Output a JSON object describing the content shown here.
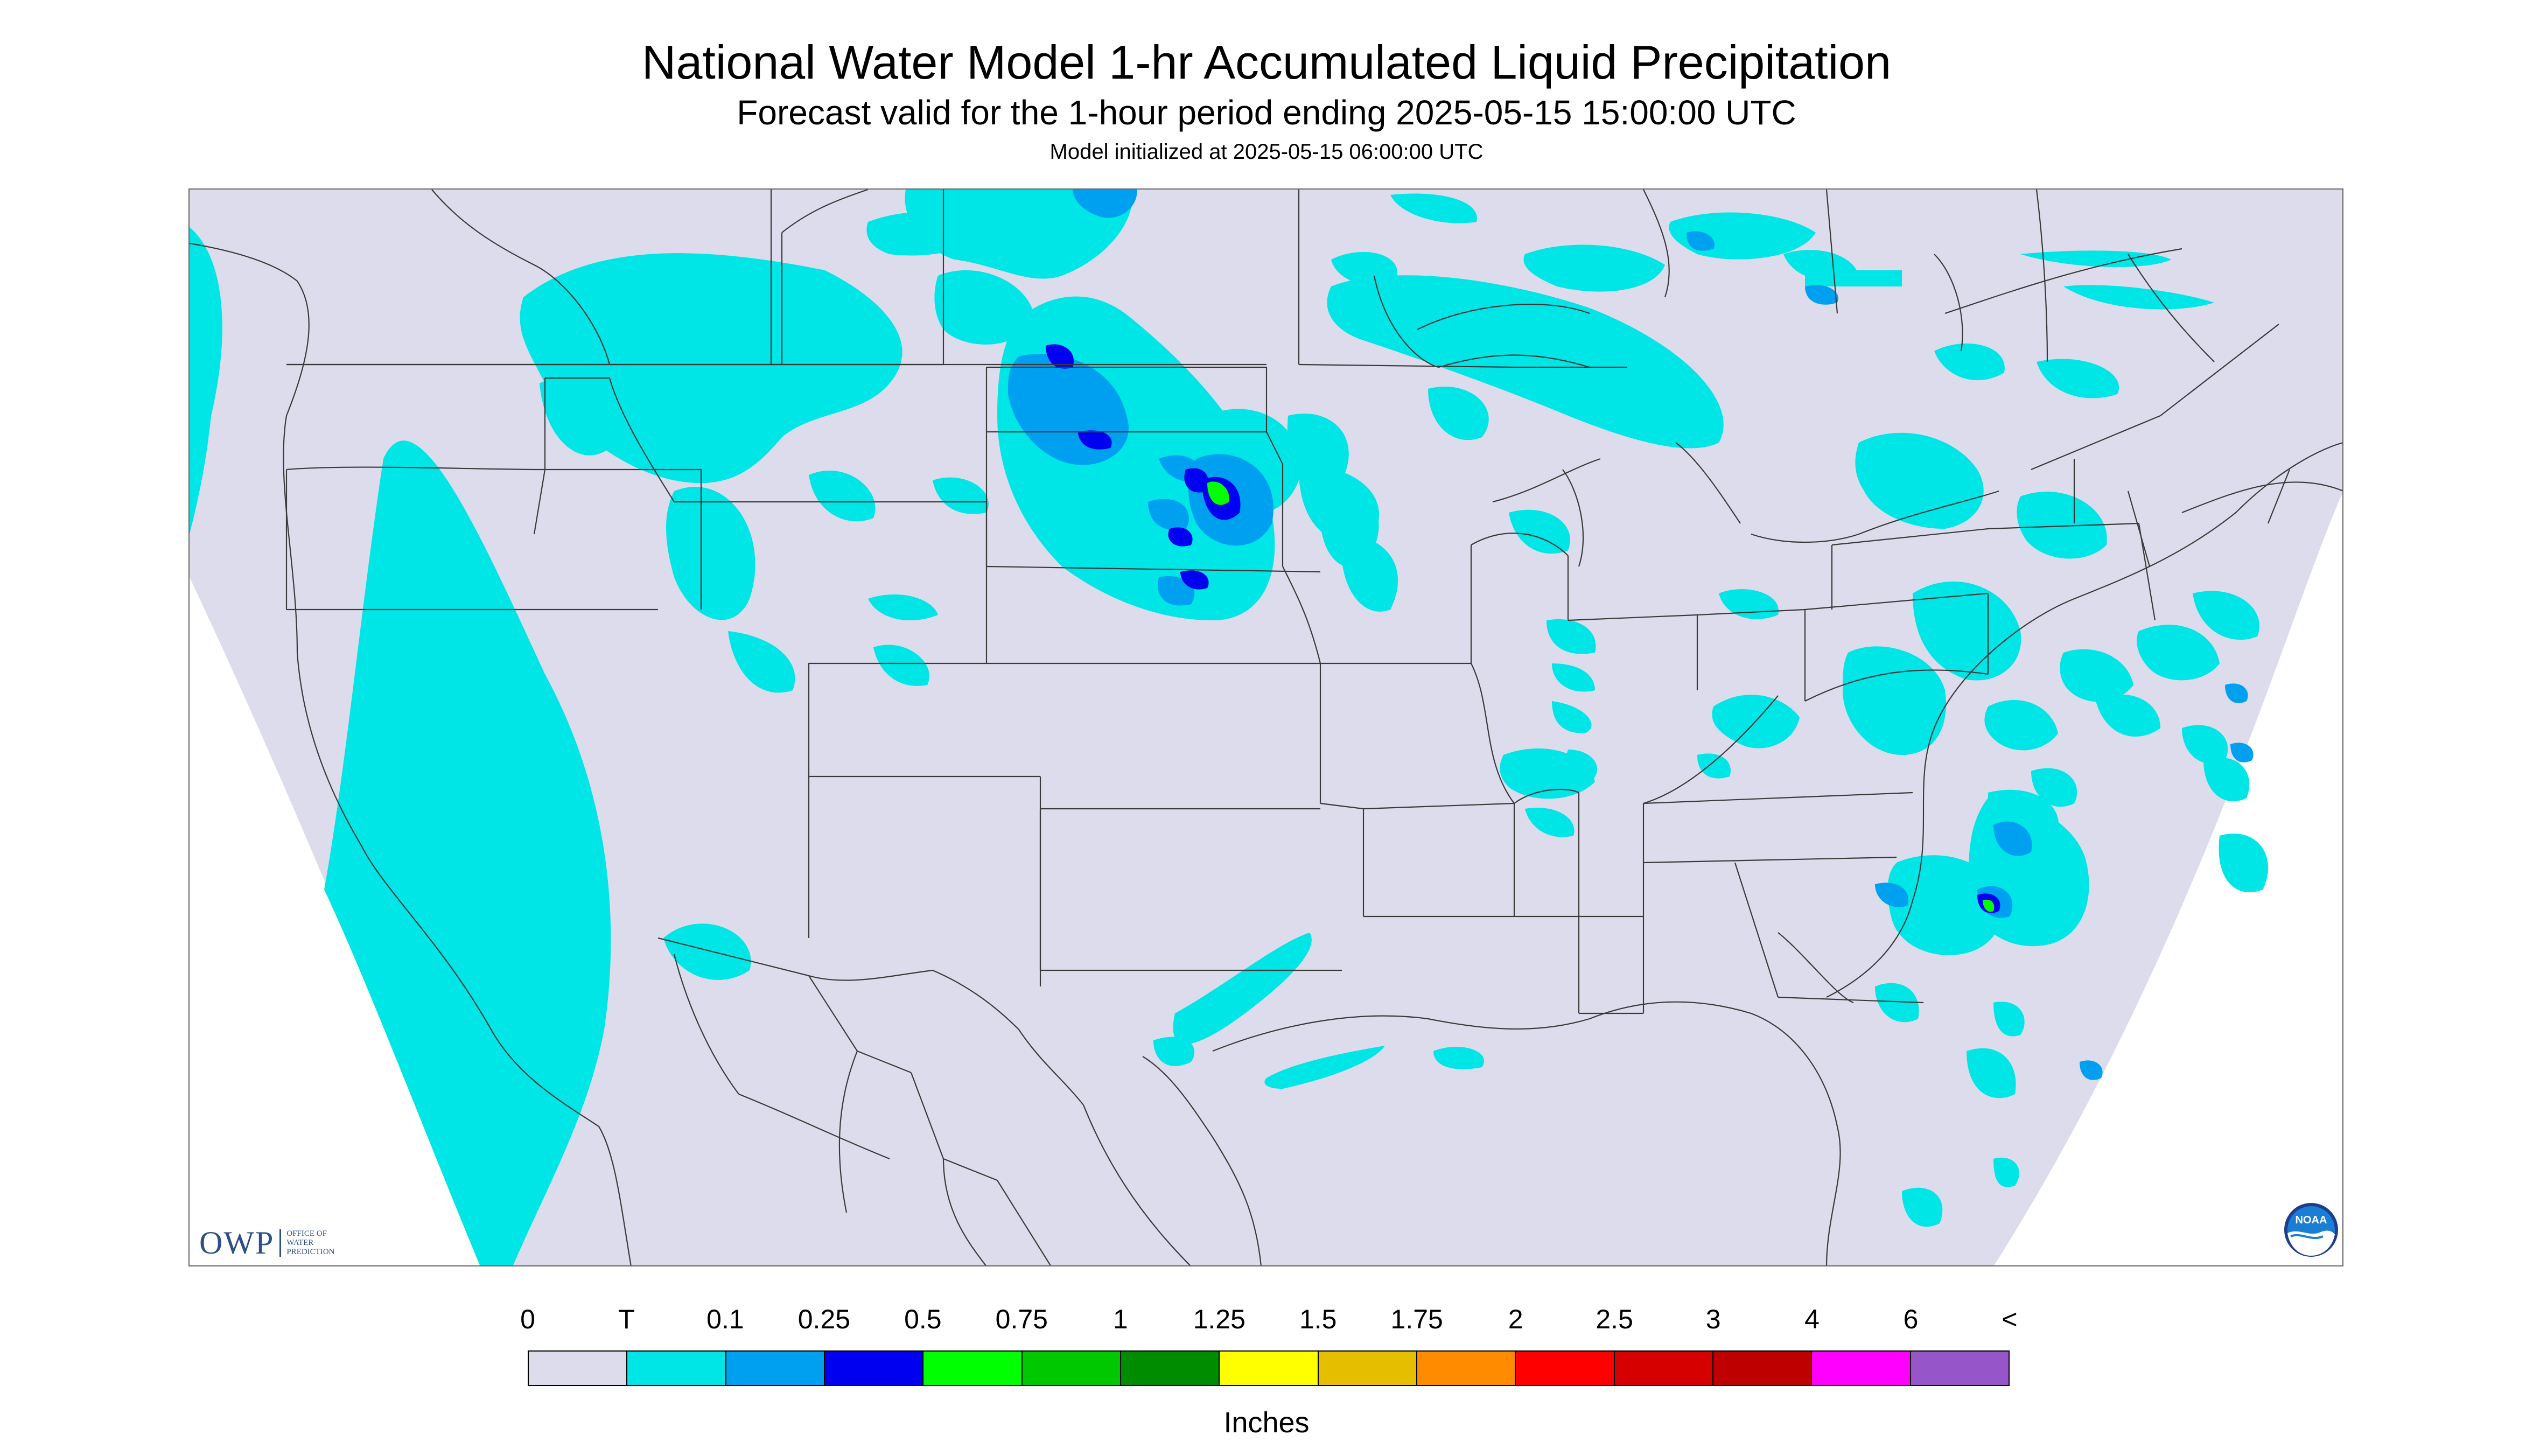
{
  "title": "National Water Model 1-hr Accumulated Liquid Precipitation",
  "subtitle": "Forecast valid for the 1-hour period ending 2025-05-15 15:00:00 UTC",
  "init_line": "Model initialized at 2025-05-15 06:00:00 UTC",
  "colors": {
    "no_data": "#ffffff",
    "domain": "#dcdcec",
    "boundary": "#3a3a3a",
    "trace": "#00e5e5"
  },
  "logos": {
    "owp_mark": "OWP",
    "owp_sub": [
      "OFFICE OF",
      "WATER",
      "PREDICTION"
    ],
    "noaa_text": "NOAA"
  },
  "legend": {
    "labels": [
      "0",
      "T",
      "0.1",
      "0.25",
      "0.5",
      "0.75",
      "1",
      "1.25",
      "1.5",
      "1.75",
      "2",
      "2.5",
      "3",
      "4",
      "6",
      "<"
    ],
    "colors": [
      "#dcdcec",
      "#00e5e5",
      "#00a0f0",
      "#0000f0",
      "#00ff00",
      "#00c800",
      "#008c00",
      "#ffff00",
      "#e6be00",
      "#ff8c00",
      "#ff0000",
      "#d70000",
      "#be0000",
      "#ff00ff",
      "#9655c8"
    ],
    "units": "Inches"
  }
}
